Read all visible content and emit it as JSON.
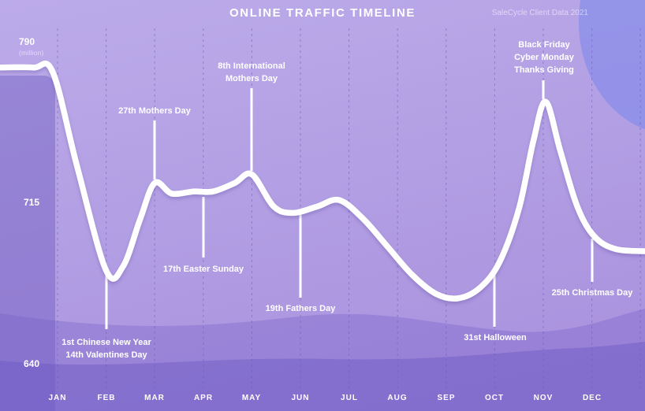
{
  "header": {
    "title": "ONLINE TRAFFIC TIMELINE",
    "source": "SaleCycle Client Data 2021"
  },
  "y_axis": {
    "ticks": [
      {
        "label": "790",
        "unit": "(million)"
      },
      {
        "label": "715",
        "unit": ""
      },
      {
        "label": "640",
        "unit": ""
      }
    ]
  },
  "chart_data": {
    "type": "line",
    "title": "ONLINE TRAFFIC TIMELINE",
    "source": "SaleCycle Client Data 2021",
    "unit": "million visits",
    "categories": [
      "JAN",
      "FEB",
      "MAR",
      "APR",
      "MAY",
      "JUN",
      "JUL",
      "AUG",
      "SEP",
      "OCT",
      "NOV",
      "DEC"
    ],
    "ylim": [
      640,
      790
    ],
    "y_ticks": [
      790,
      715,
      640
    ],
    "grid": "vertical-dashed",
    "legend": "none",
    "values_at_month_ticks": [
      776,
      684,
      725,
      721,
      729,
      712,
      715,
      689,
      672,
      686,
      763,
      700
    ],
    "series": [
      {
        "name": "Online traffic",
        "x_encoding": "fractional month index, 0 = JAN ... 11 = DEC",
        "points": [
          [
            -1.2,
            779
          ],
          [
            -0.5,
            779
          ],
          [
            -0.1,
            777
          ],
          [
            0.4,
            733
          ],
          [
            1.0,
            684
          ],
          [
            1.35,
            686
          ],
          [
            1.7,
            708
          ],
          [
            2.0,
            725
          ],
          [
            2.35,
            720
          ],
          [
            2.8,
            721
          ],
          [
            3.2,
            721
          ],
          [
            3.65,
            725
          ],
          [
            4.0,
            729
          ],
          [
            4.45,
            714
          ],
          [
            4.85,
            711
          ],
          [
            5.35,
            714
          ],
          [
            5.8,
            717
          ],
          [
            6.3,
            708
          ],
          [
            6.8,
            695
          ],
          [
            7.3,
            682
          ],
          [
            7.8,
            673
          ],
          [
            8.25,
            671
          ],
          [
            8.7,
            676
          ],
          [
            9.1,
            688
          ],
          [
            9.5,
            713
          ],
          [
            9.8,
            745
          ],
          [
            10.05,
            763
          ],
          [
            10.35,
            740
          ],
          [
            10.7,
            714
          ],
          [
            11.05,
            700
          ],
          [
            11.5,
            694
          ],
          [
            12.2,
            693
          ]
        ]
      }
    ]
  },
  "annotations": [
    {
      "month": "FEB",
      "lines": [
        "1st Chinese New Year",
        "14th Valentines Day"
      ]
    },
    {
      "month": "MAR",
      "lines": [
        "27th Mothers Day"
      ]
    },
    {
      "month": "APR",
      "lines": [
        "17th Easter Sunday"
      ]
    },
    {
      "month": "MAY",
      "lines": [
        "8th International",
        "Mothers Day"
      ]
    },
    {
      "month": "JUN",
      "lines": [
        "19th Fathers Day"
      ]
    },
    {
      "month": "OCT",
      "lines": [
        "31st Halloween"
      ]
    },
    {
      "month": "NOV",
      "lines": [
        "Black Friday",
        "Cyber Monday",
        "Thanks Giving"
      ]
    },
    {
      "month": "DEC",
      "lines": [
        "25th Christmas Day"
      ]
    }
  ],
  "colors": {
    "background_top": "#bcabea",
    "background_bottom": "#a88fdd",
    "line": "#ffffff",
    "text": "#ffffff",
    "top_right_blob": "#8a94e8",
    "wave_dark": "#9c88d9",
    "gridline": "#6e5cbc"
  }
}
